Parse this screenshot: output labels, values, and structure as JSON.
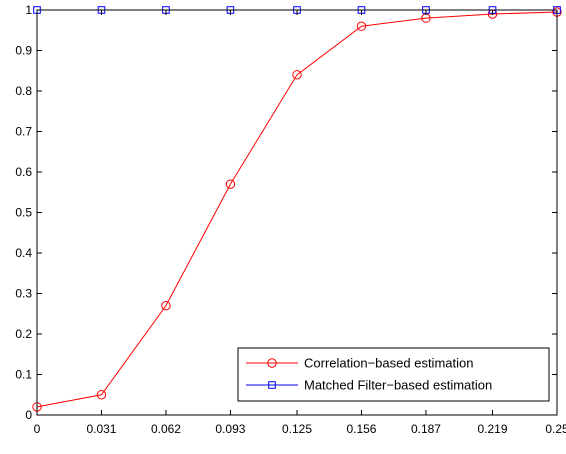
{
  "chart_data": {
    "type": "line",
    "title": "",
    "xlabel": "",
    "ylabel": "",
    "x": [
      0,
      0.031,
      0.062,
      0.093,
      0.125,
      0.156,
      0.187,
      0.219,
      0.25
    ],
    "x_tick_labels": [
      "0",
      "0.031",
      "0.062",
      "0.093",
      "0.125",
      "0.156",
      "0.187",
      "0.219",
      "0.25"
    ],
    "xlim": [
      0,
      0.25
    ],
    "ylim": [
      0,
      1
    ],
    "y_ticks": [
      0,
      0.1,
      0.2,
      0.3,
      0.4,
      0.5,
      0.6,
      0.7,
      0.8,
      0.9,
      1
    ],
    "y_tick_labels": [
      "0",
      "0.1",
      "0.2",
      "0.3",
      "0.4",
      "0.5",
      "0.6",
      "0.7",
      "0.8",
      "0.9",
      "1"
    ],
    "grid": false,
    "legend_position": "bottom-right",
    "series": [
      {
        "name": "Correlation−based estimation",
        "color": "#ff0000",
        "marker": "circle",
        "values": [
          0.02,
          0.05,
          0.27,
          0.57,
          0.84,
          0.96,
          0.98,
          0.99,
          0.995
        ]
      },
      {
        "name": "Matched Filter−based estimation",
        "color": "#0000ff",
        "marker": "square",
        "values": [
          1,
          1,
          1,
          1,
          1,
          1,
          1,
          1,
          1
        ]
      }
    ]
  }
}
